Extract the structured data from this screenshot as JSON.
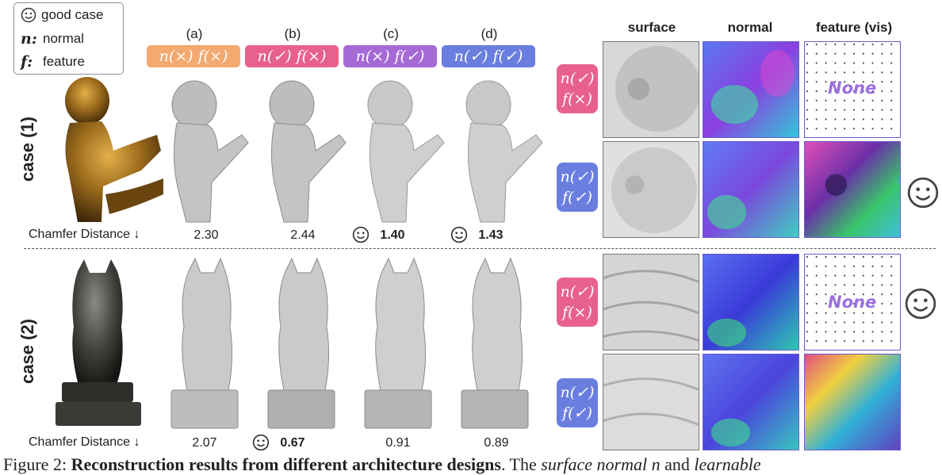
{
  "legend": {
    "good_case": "good case",
    "n_symbol": "n:",
    "n_label": "normal",
    "f_symbol": "f:",
    "f_label": "feature"
  },
  "columns": [
    {
      "letter": "(a)",
      "label": "n(×) f(×)",
      "color": "#f3a970"
    },
    {
      "letter": "(b)",
      "label": "n(✓) f(×)",
      "color": "#e7618c"
    },
    {
      "letter": "(c)",
      "label": "n(×) f(✓)",
      "color": "#a66ad6"
    },
    {
      "letter": "(d)",
      "label": "n(✓) f(✓)",
      "color": "#6a7ee0"
    }
  ],
  "cases": [
    {
      "label": "case (1)",
      "metric_label": "Chamfer Distance ↓",
      "values": [
        "2.30",
        "2.44",
        "1.40",
        "1.43"
      ],
      "good": [
        false,
        false,
        true,
        true
      ]
    },
    {
      "label": "case (2)",
      "metric_label": "Chamfer Distance ↓",
      "values": [
        "2.07",
        "0.67",
        "0.91",
        "0.89"
      ],
      "good": [
        false,
        true,
        false,
        false
      ]
    }
  ],
  "right_panel": {
    "headers": [
      "surface",
      "normal",
      "feature (vis)"
    ],
    "row_labels": [
      {
        "n": "n(✓)",
        "f": "f(×)",
        "color": "#e7618c"
      },
      {
        "n": "n(✓)",
        "f": "f(✓)",
        "color": "#6a7ee0"
      },
      {
        "n": "n(✓)",
        "f": "f(×)",
        "color": "#e7618c"
      },
      {
        "n": "n(✓)",
        "f": "f(✓)",
        "color": "#6a7ee0"
      }
    ],
    "none_text": "None"
  },
  "caption": {
    "prefix": "Figure 2: ",
    "bold": "Reconstruction results from different architecture designs",
    "rest": ". The ",
    "italic1": "surface normal n",
    "and": " and ",
    "italic2": "learnable"
  }
}
